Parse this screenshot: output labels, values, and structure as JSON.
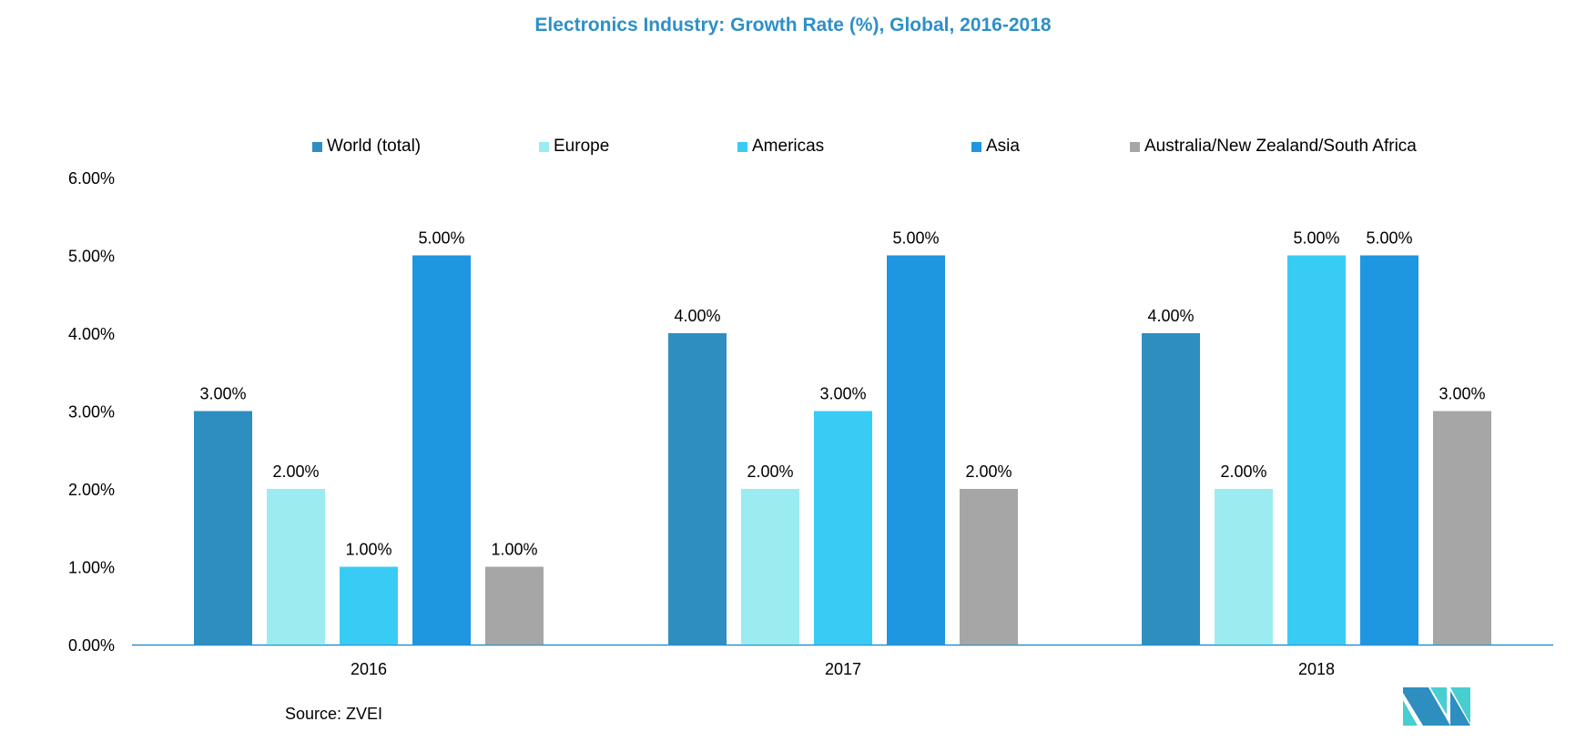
{
  "chart_data": {
    "type": "bar",
    "title": "Electronics Industry: Growth Rate (%), Global, 2016-2018",
    "categories": [
      "2016",
      "2017",
      "2018"
    ],
    "series": [
      {
        "name": "World (total)",
        "color": "#2e8ec0",
        "values": [
          3,
          4,
          4
        ]
      },
      {
        "name": "Europe",
        "color": "#9becf0",
        "values": [
          2,
          2,
          2
        ]
      },
      {
        "name": "Americas",
        "color": "#38ccf5",
        "values": [
          1,
          3,
          5
        ]
      },
      {
        "name": "Asia",
        "color": "#1e96e0",
        "values": [
          5,
          5,
          5
        ]
      },
      {
        "name": "Australia/New Zealand/South Africa",
        "color": "#a6a6a6",
        "values": [
          1,
          2,
          3
        ]
      }
    ],
    "ylim": [
      0,
      6
    ],
    "yticks": [
      "0.00%",
      "1.00%",
      "2.00%",
      "3.00%",
      "4.00%",
      "5.00%",
      "6.00%"
    ],
    "xlabel": "",
    "ylabel": "",
    "legend_position": "top",
    "grid": false,
    "value_format_suffix": "%"
  },
  "source": "Source: ZVEI",
  "logo_text": "MI"
}
